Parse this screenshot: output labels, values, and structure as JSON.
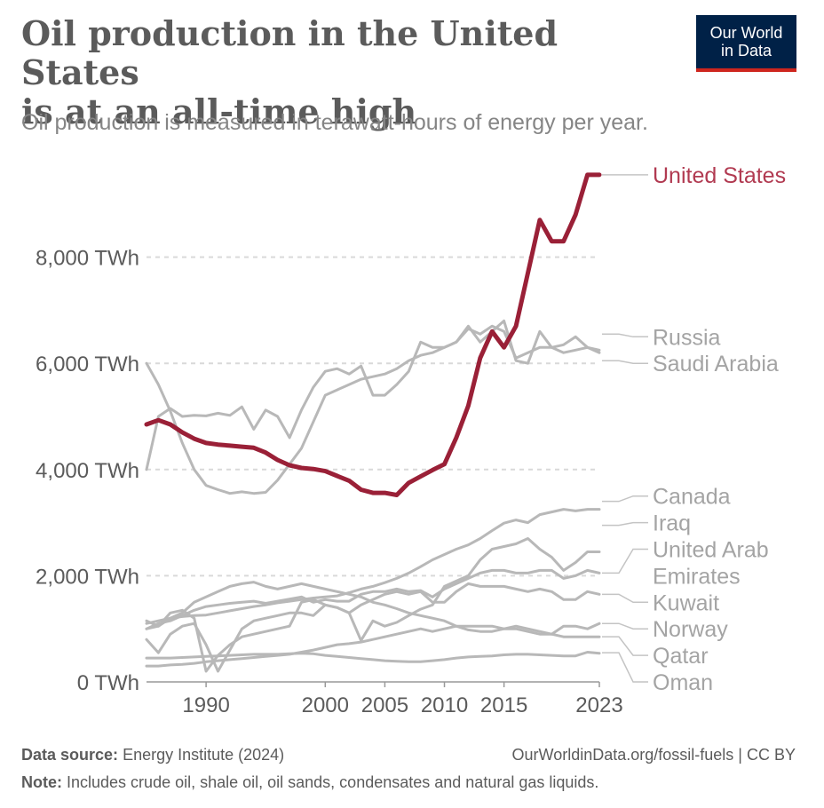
{
  "header": {
    "title_line1": "Oil production in the United States",
    "title_line2": "is at an all-time high",
    "subtitle": "Oil production is measured in terawatt-hours of energy per year.",
    "logo_line1": "Our World",
    "logo_line2": "in Data"
  },
  "footer": {
    "source_label": "Data source:",
    "source_text": "Energy Institute (2024)",
    "link_text": "OurWorldinData.org/fossil-fuels | CC BY",
    "note_label": "Note:",
    "note_text": "Includes crude oil, shale oil, oil sands, condensates and natural gas liquids."
  },
  "colors": {
    "highlight": "#9a2037",
    "highlight_label": "#b13a51",
    "other": "#b8b8b8",
    "label_other": "#a4a4a4",
    "axis_text": "#5b5b5b",
    "grid": "#d9d9d9"
  },
  "chart_data": {
    "type": "line",
    "x": [
      1985,
      1986,
      1987,
      1988,
      1989,
      1990,
      1991,
      1992,
      1993,
      1994,
      1995,
      1996,
      1997,
      1998,
      1999,
      2000,
      2001,
      2002,
      2003,
      2004,
      2005,
      2006,
      2007,
      2008,
      2009,
      2010,
      2011,
      2012,
      2013,
      2014,
      2015,
      2016,
      2017,
      2018,
      2019,
      2020,
      2021,
      2022,
      2023
    ],
    "ylim": [
      0,
      10000
    ],
    "yticks": [
      {
        "value": 0,
        "label": "0 TWh"
      },
      {
        "value": 2000,
        "label": "2,000 TWh"
      },
      {
        "value": 4000,
        "label": "4,000 TWh"
      },
      {
        "value": 6000,
        "label": "6,000 TWh"
      },
      {
        "value": 8000,
        "label": "8,000 TWh"
      }
    ],
    "xticks": [
      {
        "value": 1990,
        "label": "1990"
      },
      {
        "value": 2000,
        "label": "2000"
      },
      {
        "value": 2005,
        "label": "2005"
      },
      {
        "value": 2010,
        "label": "2010"
      },
      {
        "value": 2015,
        "label": "2015"
      },
      {
        "value": 2023,
        "label": "2023"
      }
    ],
    "series": [
      {
        "name": "United States",
        "highlight": true,
        "label_value": 9550,
        "values": [
          4850,
          4930,
          4850,
          4700,
          4580,
          4500,
          4470,
          4450,
          4430,
          4410,
          4320,
          4180,
          4080,
          4030,
          4010,
          3970,
          3880,
          3790,
          3620,
          3560,
          3560,
          3520,
          3750,
          3870,
          3990,
          4100,
          4600,
          5200,
          6100,
          6600,
          6300,
          6700,
          7700,
          8700,
          8300,
          8300,
          8800,
          9550,
          9550
        ]
      },
      {
        "name": "Russia",
        "label_value": 6550,
        "values": [
          4000,
          5000,
          5150,
          5000,
          5020,
          5010,
          5060,
          5020,
          5180,
          4760,
          5120,
          5000,
          4600,
          5120,
          5550,
          5850,
          5900,
          5800,
          5950,
          5400,
          5400,
          5600,
          5850,
          6400,
          6300,
          6300,
          6400,
          6700,
          6400,
          6600,
          6800,
          6050,
          6000,
          6600,
          6300,
          6350,
          6500,
          6300,
          6250
        ]
      },
      {
        "name": "Saudi Arabia",
        "label_value": 6050,
        "values": [
          6000,
          5600,
          5100,
          4500,
          4000,
          3700,
          3620,
          3550,
          3580,
          3550,
          3570,
          3800,
          4100,
          4400,
          4900,
          5400,
          5500,
          5600,
          5700,
          5750,
          5800,
          5900,
          6050,
          6150,
          6200,
          6300,
          6400,
          6650,
          6550,
          6700,
          6600,
          6100,
          6200,
          6300,
          6300,
          6200,
          6250,
          6300,
          6200
        ]
      },
      {
        "name": "Canada",
        "label_value": 3400,
        "values": [
          1100,
          1150,
          1200,
          1230,
          1250,
          1260,
          1300,
          1340,
          1380,
          1420,
          1450,
          1490,
          1520,
          1550,
          1580,
          1600,
          1620,
          1680,
          1750,
          1800,
          1870,
          1950,
          2050,
          2170,
          2300,
          2400,
          2500,
          2580,
          2700,
          2850,
          2990,
          3050,
          3000,
          3150,
          3200,
          3250,
          3220,
          3250,
          3250
        ]
      },
      {
        "name": "Iraq",
        "label_value": 2950,
        "values": [
          1150,
          1050,
          1300,
          1350,
          1200,
          200,
          500,
          700,
          850,
          900,
          950,
          1000,
          1050,
          1500,
          1550,
          1450,
          1400,
          1300,
          780,
          1150,
          1050,
          1120,
          1250,
          1370,
          1450,
          1800,
          1900,
          2000,
          2300,
          2500,
          2550,
          2600,
          2700,
          2500,
          2350,
          2100,
          2250,
          2450,
          2450
        ]
      },
      {
        "name": "United Arab Emirates",
        "label_value": 2050,
        "values": [
          1000,
          1100,
          1150,
          1250,
          1350,
          1420,
          1450,
          1480,
          1500,
          1520,
          1480,
          1520,
          1560,
          1600,
          1500,
          1550,
          1520,
          1520,
          1650,
          1700,
          1700,
          1750,
          1700,
          1720,
          1600,
          1750,
          1850,
          1950,
          2050,
          2100,
          2100,
          2050,
          2050,
          2100,
          2100,
          1950,
          2000,
          2100,
          2050
        ]
      },
      {
        "name": "Kuwait",
        "label_value": 1650,
        "values": [
          800,
          550,
          900,
          1050,
          1100,
          700,
          200,
          600,
          1000,
          1150,
          1200,
          1250,
          1300,
          1300,
          1250,
          1450,
          1400,
          1300,
          1450,
          1550,
          1650,
          1700,
          1650,
          1700,
          1500,
          1500,
          1700,
          1850,
          1800,
          1800,
          1800,
          1750,
          1700,
          1750,
          1700,
          1550,
          1550,
          1700,
          1650
        ]
      },
      {
        "name": "Norway",
        "label_value": 1100,
        "values": [
          1000,
          1050,
          1200,
          1300,
          1500,
          1600,
          1700,
          1800,
          1850,
          1880,
          1800,
          1750,
          1800,
          1850,
          1800,
          1750,
          1700,
          1650,
          1600,
          1500,
          1450,
          1380,
          1300,
          1250,
          1200,
          1150,
          1050,
          980,
          950,
          950,
          1000,
          1050,
          1000,
          950,
          900,
          1050,
          1050,
          1000,
          1100
        ]
      },
      {
        "name": "Qatar",
        "label_value": 850,
        "values": [
          300,
          300,
          320,
          330,
          350,
          380,
          400,
          420,
          440,
          460,
          480,
          500,
          520,
          560,
          600,
          650,
          700,
          720,
          750,
          800,
          850,
          900,
          950,
          1000,
          950,
          1000,
          1050,
          1050,
          1050,
          1050,
          1000,
          1000,
          950,
          900,
          900,
          850,
          850,
          850,
          850
        ]
      },
      {
        "name": "Oman",
        "label_value": 550,
        "values": [
          450,
          450,
          450,
          460,
          470,
          480,
          490,
          500,
          510,
          520,
          520,
          520,
          530,
          540,
          530,
          500,
          480,
          460,
          440,
          420,
          400,
          390,
          380,
          380,
          400,
          420,
          450,
          470,
          480,
          490,
          510,
          520,
          520,
          510,
          500,
          490,
          490,
          560,
          540
        ]
      }
    ],
    "labels": [
      {
        "text": "United States",
        "label_y": 9550,
        "highlight": true
      },
      {
        "text": "Russia",
        "label_y": 6500
      },
      {
        "text": "Saudi Arabia",
        "label_y": 6000
      },
      {
        "text": "Canada",
        "label_y": 3500
      },
      {
        "text": "Iraq",
        "label_y": 3000
      },
      {
        "text": "United Arab",
        "label_y": 2500
      },
      {
        "text": "Emirates",
        "label_y": 2000
      },
      {
        "text": "Kuwait",
        "label_y": 1500
      },
      {
        "text": "Norway",
        "label_y": 1000
      },
      {
        "text": "Qatar",
        "label_y": 500
      },
      {
        "text": "Oman",
        "label_y": 0
      }
    ]
  }
}
